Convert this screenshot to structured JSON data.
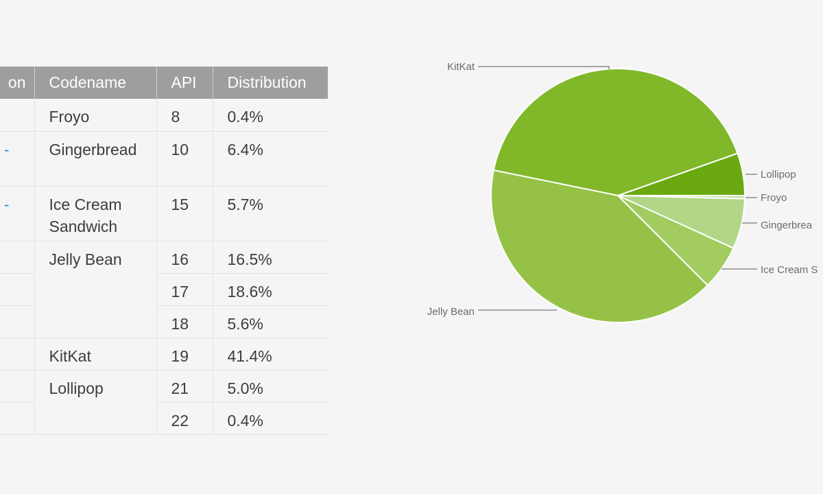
{
  "table": {
    "headers": [
      "on",
      "Codename",
      "API",
      "Distribution"
    ],
    "rows": [
      {
        "version": "",
        "codename": "Froyo",
        "api": "8",
        "distribution": "0.4%"
      },
      {
        "version": "-",
        "codename": "Gingerbread",
        "api": "10",
        "distribution": "6.4%"
      },
      {
        "version": "-",
        "codename": "Ice Cream Sandwich",
        "api": "15",
        "distribution": "5.7%"
      },
      {
        "version": "",
        "codename": "Jelly Bean",
        "api": "16",
        "distribution": "16.5%"
      },
      {
        "version": "",
        "codename": "",
        "api": "17",
        "distribution": "18.6%"
      },
      {
        "version": "",
        "codename": "",
        "api": "18",
        "distribution": "5.6%"
      },
      {
        "version": "",
        "codename": "KitKat",
        "api": "19",
        "distribution": "41.4%"
      },
      {
        "version": "",
        "codename": "Lollipop",
        "api": "21",
        "distribution": "5.0%"
      },
      {
        "version": "",
        "codename": "",
        "api": "22",
        "distribution": "0.4%"
      }
    ]
  },
  "chart_data": {
    "type": "pie",
    "slices": [
      {
        "label": "Lollipop",
        "value": 5.4,
        "color": "#6aaa10"
      },
      {
        "label": "KitKat",
        "value": 41.4,
        "color": "#80b82a"
      },
      {
        "label": "Jelly Bean",
        "value": 40.7,
        "color": "#95c246"
      },
      {
        "label": "Ice Cream S",
        "value": 5.7,
        "color": "#a2cb60"
      },
      {
        "label": "Gingerbrea",
        "value": 6.4,
        "color": "#b2d688"
      },
      {
        "label": "Froyo",
        "value": 0.4,
        "color": "#c4e0a3"
      }
    ]
  }
}
